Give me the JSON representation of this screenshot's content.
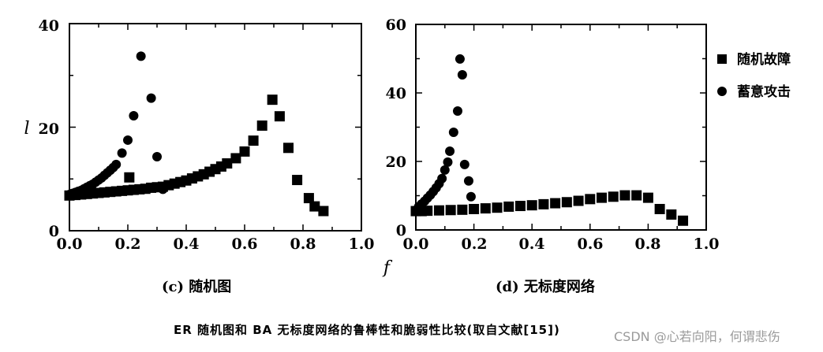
{
  "figure": {
    "caption": "ER 随机图和 BA 无标度网络的鲁棒性和脆弱性比较(取自文献[15])",
    "watermark": "CSDN @心若向阳，何谓悲伤",
    "shared_xlabel": "f",
    "legend": [
      {
        "marker": "square",
        "label": "随机故障"
      },
      {
        "marker": "circle",
        "label": "蓄意攻击"
      }
    ]
  },
  "chart_data": [
    {
      "type": "scatter",
      "title": "(c) 随机图",
      "xlabel": "f",
      "ylabel": "l",
      "xlim": [
        0.0,
        1.0
      ],
      "ylim": [
        0,
        40
      ],
      "xticks": [
        "0.0",
        "0.2",
        "0.4",
        "0.6",
        "0.8",
        "1.0"
      ],
      "yticks": [
        "0",
        "20",
        "40"
      ],
      "grid": false,
      "series": [
        {
          "name": "随机故障",
          "marker": "square",
          "x": [
            0.0,
            0.02,
            0.04,
            0.06,
            0.08,
            0.1,
            0.12,
            0.14,
            0.16,
            0.18,
            0.2,
            0.22,
            0.24,
            0.26,
            0.28,
            0.3,
            0.32,
            0.34,
            0.36,
            0.38,
            0.4,
            0.42,
            0.44,
            0.46,
            0.48,
            0.5,
            0.52,
            0.54,
            0.57,
            0.6,
            0.63,
            0.66,
            0.695,
            0.72,
            0.75,
            0.78,
            0.82,
            0.84,
            0.87
          ],
          "y": [
            6.8,
            6.9,
            7.0,
            7.1,
            7.2,
            7.3,
            7.4,
            7.5,
            7.6,
            7.7,
            7.8,
            7.9,
            8.0,
            8.1,
            8.3,
            8.4,
            8.5,
            8.8,
            9.1,
            9.4,
            9.7,
            10.1,
            10.5,
            10.9,
            11.4,
            11.9,
            12.4,
            13.0,
            14.0,
            15.3,
            17.4,
            20.3,
            25.3,
            22.1,
            16.0,
            9.8,
            6.3,
            4.7,
            3.8
          ]
        },
        {
          "name": "随机故障-outlier",
          "marker": "square",
          "x": [
            0.205
          ],
          "y": [
            10.3
          ]
        },
        {
          "name": "蓄意攻击",
          "marker": "circle",
          "x": [
            0.0,
            0.01,
            0.02,
            0.03,
            0.04,
            0.05,
            0.06,
            0.07,
            0.08,
            0.09,
            0.1,
            0.11,
            0.12,
            0.13,
            0.14,
            0.15,
            0.16,
            0.18,
            0.2,
            0.22,
            0.245,
            0.28,
            0.3,
            0.32
          ],
          "y": [
            7.0,
            7.2,
            7.4,
            7.6,
            7.8,
            8.1,
            8.4,
            8.7,
            9.0,
            9.4,
            9.8,
            10.2,
            10.7,
            11.2,
            11.7,
            12.2,
            12.8,
            15.0,
            17.5,
            22.2,
            33.7,
            25.6,
            14.3,
            8.0
          ]
        }
      ]
    },
    {
      "type": "scatter",
      "title": "(d) 无标度网络",
      "xlabel": "f",
      "ylabel": "",
      "xlim": [
        0.0,
        1.0
      ],
      "ylim": [
        0,
        60
      ],
      "xticks": [
        "0.0",
        "0.2",
        "0.4",
        "0.6",
        "0.8",
        "1.0"
      ],
      "yticks": [
        "0",
        "20",
        "40",
        "60"
      ],
      "grid": false,
      "series": [
        {
          "name": "随机故障",
          "marker": "square",
          "x": [
            0.0,
            0.02,
            0.04,
            0.08,
            0.12,
            0.16,
            0.2,
            0.24,
            0.28,
            0.32,
            0.36,
            0.4,
            0.44,
            0.48,
            0.52,
            0.56,
            0.6,
            0.64,
            0.68,
            0.72,
            0.76,
            0.8,
            0.84,
            0.88,
            0.92
          ],
          "y": [
            5.5,
            5.5,
            5.6,
            5.7,
            5.8,
            5.9,
            6.1,
            6.3,
            6.5,
            6.8,
            7.0,
            7.2,
            7.5,
            7.8,
            8.1,
            8.5,
            9.0,
            9.4,
            9.7,
            10.1,
            10.1,
            9.4,
            6.1,
            4.5,
            2.7
          ]
        },
        {
          "name": "蓄意攻击",
          "marker": "circle",
          "x": [
            0.0,
            0.01,
            0.02,
            0.03,
            0.04,
            0.05,
            0.06,
            0.07,
            0.08,
            0.09,
            0.1,
            0.11,
            0.117,
            0.13,
            0.144,
            0.152,
            0.16,
            0.168,
            0.182,
            0.19
          ],
          "y": [
            5.8,
            6.8,
            7.6,
            8.4,
            9.3,
            10.2,
            11.2,
            12.3,
            13.5,
            15.0,
            17.5,
            19.8,
            23.0,
            28.5,
            34.7,
            49.9,
            45.3,
            19.1,
            14.3,
            9.7
          ]
        }
      ]
    }
  ]
}
